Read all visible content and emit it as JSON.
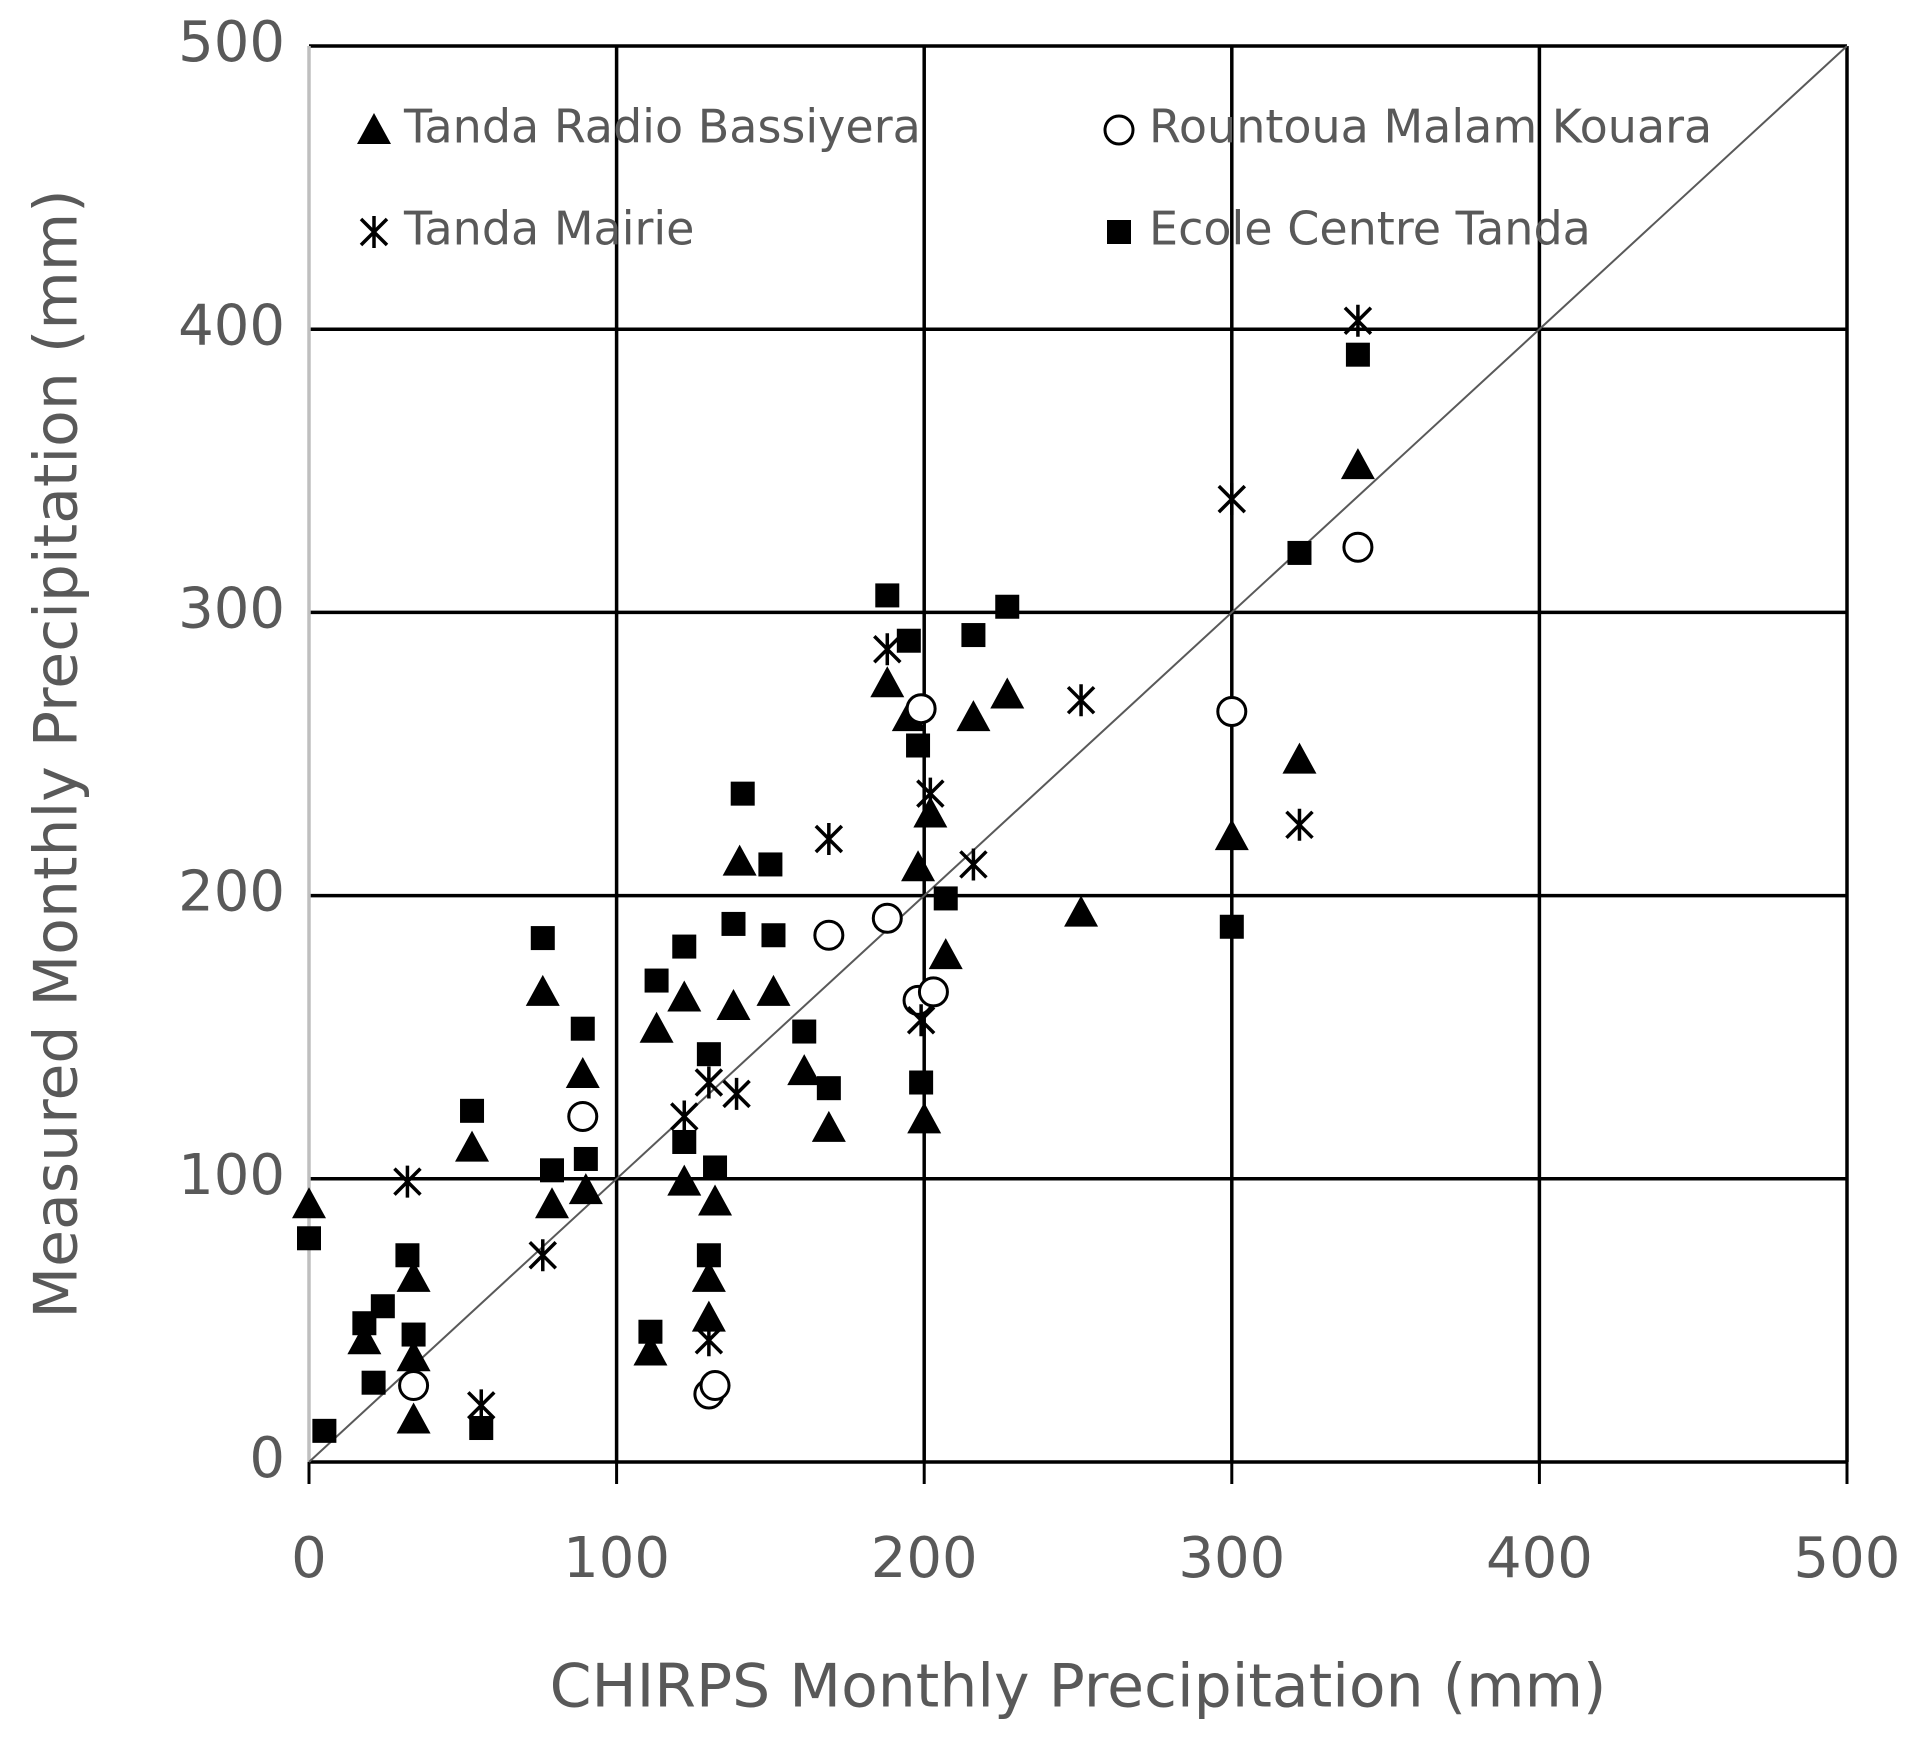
{
  "chart_data": {
    "type": "scatter",
    "x_label": "CHIRPS Monthly Precipitation (mm)",
    "y_label": "Measured Monthly Precipitation (mm)",
    "xlim": [
      0,
      500
    ],
    "ylim": [
      0,
      500
    ],
    "xticks": [
      0,
      100,
      200,
      300,
      400,
      500
    ],
    "yticks": [
      0,
      100,
      200,
      300,
      400,
      500
    ],
    "grid": true,
    "identity_line": true,
    "legend": "upper left",
    "series": [
      {
        "name": "Tanda Radio Bassiyera",
        "color": "#000000",
        "marker": "triangle",
        "x": [
          0,
          18,
          34,
          34,
          34,
          53,
          76,
          79,
          89,
          90,
          111,
          113,
          122,
          122,
          130,
          130,
          132,
          138,
          140,
          151,
          161,
          169,
          188,
          195,
          198,
          200,
          202,
          207,
          216,
          227,
          251,
          300,
          322,
          341
        ],
        "values": [
          91,
          43,
          15,
          65,
          37,
          111,
          166,
          91,
          137,
          96,
          39,
          153,
          164,
          99,
          51,
          65,
          92,
          161,
          212,
          166,
          138,
          118,
          275,
          263,
          210,
          121,
          229,
          179,
          263,
          271,
          194,
          221,
          248,
          352
        ]
      },
      {
        "name": "Rountoua Malam Kouara",
        "color": "#000000",
        "marker": "circle",
        "x": [
          34,
          89,
          130,
          132,
          169,
          188,
          199,
          198,
          203,
          300,
          341
        ],
        "values": [
          27,
          122,
          24,
          27,
          186,
          192,
          266,
          163,
          166,
          265,
          323
        ]
      },
      {
        "name": "Tanda Mairie",
        "color": "#000000",
        "marker": "asterisk",
        "x": [
          32,
          56,
          76,
          122,
          130,
          130,
          139,
          169,
          188,
          199,
          202,
          216,
          251,
          300,
          322,
          341
        ],
        "values": [
          99,
          20,
          73,
          122,
          43,
          134,
          130,
          220,
          287,
          156,
          236,
          211,
          269,
          340,
          225,
          403
        ]
      },
      {
        "name": "Ecole Centre Tanda",
        "color": "#000000",
        "marker": "square",
        "x": [
          0,
          5,
          18,
          21,
          24,
          32,
          34,
          56,
          53,
          76,
          79,
          89,
          90,
          111,
          113,
          122,
          122,
          130,
          130,
          132,
          138,
          141,
          150,
          151,
          161,
          169,
          188,
          195,
          198,
          199,
          207,
          216,
          227,
          300,
          322,
          341
        ],
        "values": [
          79,
          11,
          49,
          28,
          55,
          73,
          45,
          12,
          124,
          185,
          103,
          153,
          107,
          46,
          170,
          182,
          113,
          144,
          73,
          104,
          190,
          236,
          211,
          186,
          152,
          132,
          306,
          290,
          253,
          134,
          199,
          292,
          302,
          189,
          321,
          391
        ]
      }
    ]
  }
}
